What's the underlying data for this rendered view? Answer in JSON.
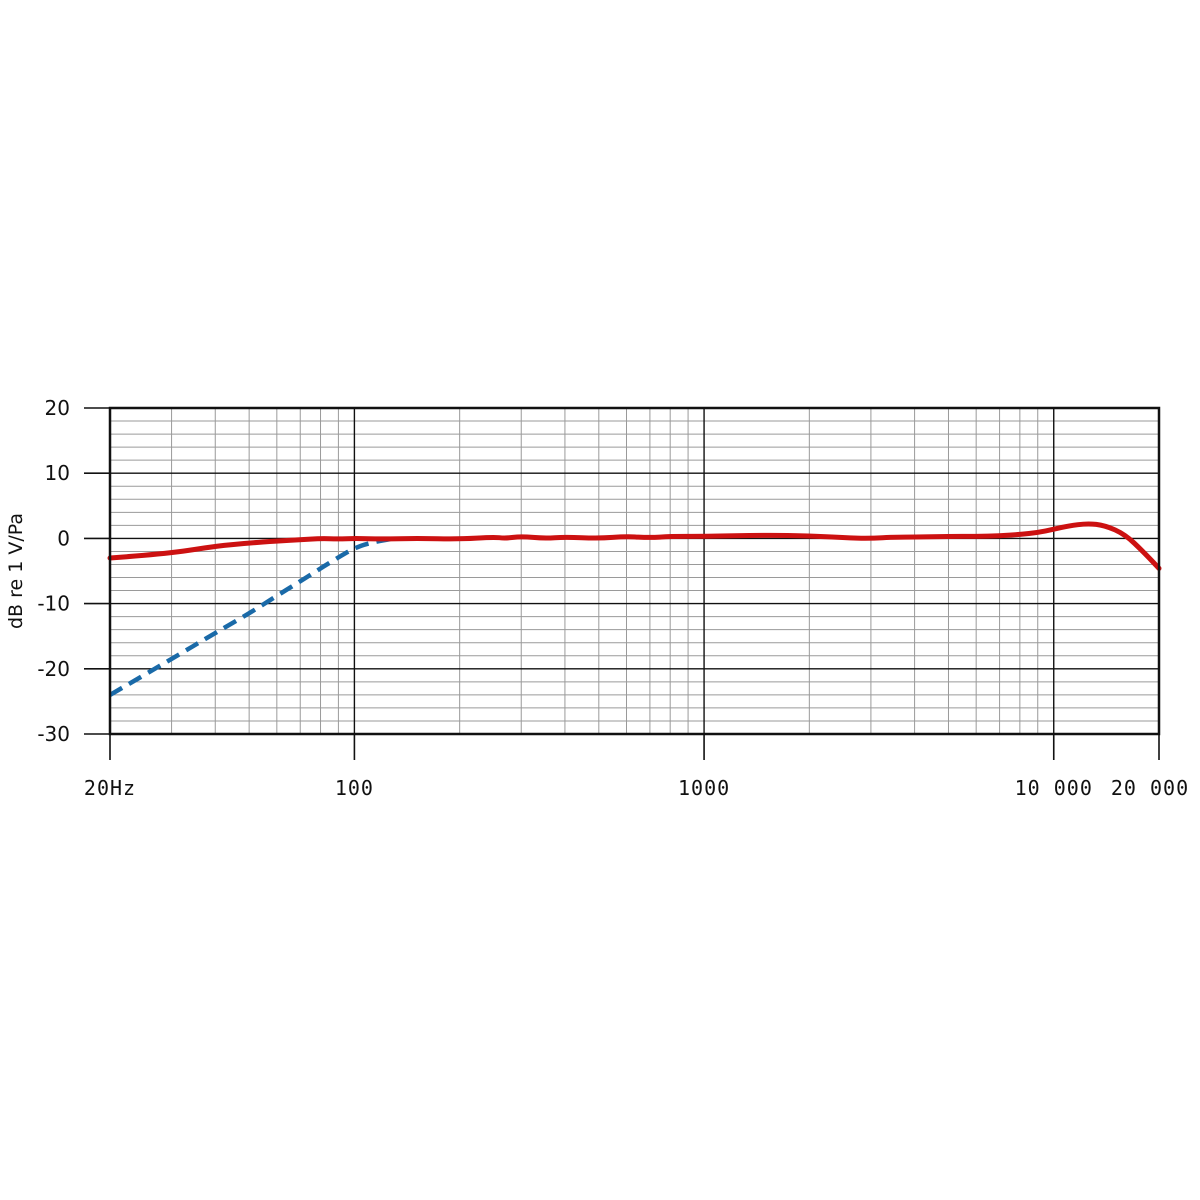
{
  "chart_data": {
    "type": "line",
    "x_scale": "log",
    "xlim": [
      20,
      20000
    ],
    "ylim": [
      -30,
      20
    ],
    "ylabel": "dB re 1 V/Pa",
    "xlabel": "",
    "grid": true,
    "y_ticks": [
      20,
      10,
      0,
      -10,
      -20,
      -30
    ],
    "y_tick_labels": [
      "20",
      "10",
      "0",
      "-10",
      "-20",
      "-30"
    ],
    "x_ticks": [
      20,
      100,
      1000,
      10000,
      20000
    ],
    "x_tick_labels": [
      "20Hz",
      "100",
      "1000",
      "10 000",
      "20 000"
    ],
    "series": [
      {
        "style": "solid",
        "color": "#cc1111",
        "x": [
          20,
          25,
          30,
          35,
          40,
          50,
          60,
          70,
          80,
          90,
          100,
          120,
          150,
          200,
          250,
          270,
          300,
          350,
          400,
          500,
          600,
          700,
          800,
          1000,
          1500,
          2000,
          2500,
          3000,
          3500,
          4000,
          5000,
          6000,
          7000,
          8000,
          9000,
          10000,
          11000,
          12500,
          14000,
          16000,
          18000,
          20000
        ],
        "y": [
          -3.0,
          -2.6,
          -2.2,
          -1.7,
          -1.2,
          -0.7,
          -0.4,
          -0.2,
          0.0,
          -0.1,
          0.0,
          -0.1,
          0.0,
          -0.1,
          0.2,
          0.0,
          0.3,
          0.0,
          0.2,
          0.0,
          0.3,
          0.1,
          0.3,
          0.3,
          0.5,
          0.4,
          0.1,
          0.0,
          0.2,
          0.2,
          0.3,
          0.3,
          0.4,
          0.6,
          0.9,
          1.4,
          1.9,
          2.3,
          2.0,
          0.6,
          -2.0,
          -4.6
        ]
      },
      {
        "style": "dashed",
        "color": "#1a6aa8",
        "x": [
          20,
          30,
          40,
          50,
          60,
          70,
          80,
          90,
          100,
          110,
          130
        ],
        "y": [
          -24.0,
          -18.5,
          -14.5,
          -11.5,
          -8.8,
          -6.6,
          -4.6,
          -2.9,
          -1.5,
          -0.7,
          0.0
        ]
      }
    ]
  }
}
